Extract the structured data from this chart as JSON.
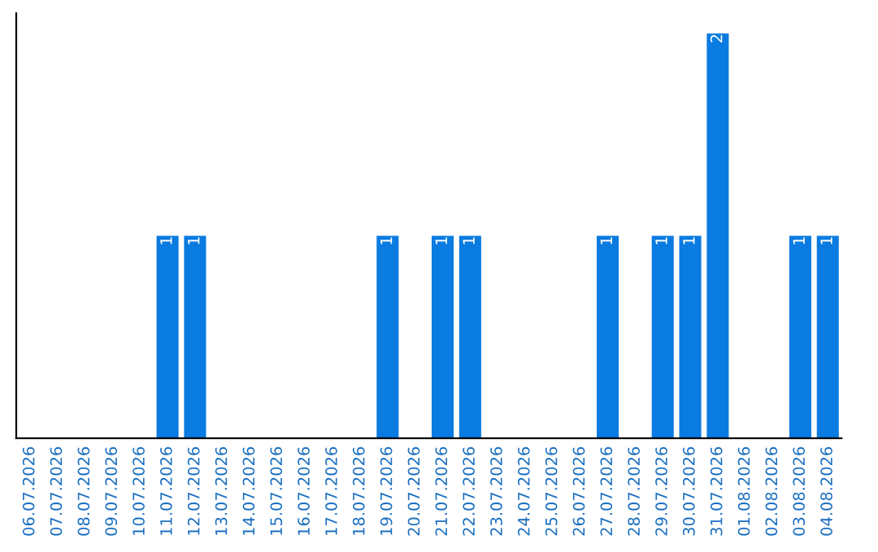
{
  "chart_data": {
    "type": "bar",
    "categories": [
      "06.07.2026",
      "07.07.2026",
      "08.07.2026",
      "09.07.2026",
      "10.07.2026",
      "11.07.2026",
      "12.07.2026",
      "13.07.2026",
      "14.07.2026",
      "15.07.2026",
      "16.07.2026",
      "17.07.2026",
      "18.07.2026",
      "19.07.2026",
      "20.07.2026",
      "21.07.2026",
      "22.07.2026",
      "23.07.2026",
      "24.07.2026",
      "25.07.2026",
      "26.07.2026",
      "27.07.2026",
      "28.07.2026",
      "29.07.2026",
      "30.07.2026",
      "31.07.2026",
      "01.08.2026",
      "02.08.2026",
      "03.08.2026",
      "04.08.2026"
    ],
    "values": [
      0,
      0,
      0,
      0,
      0,
      1,
      1,
      0,
      0,
      0,
      0,
      0,
      0,
      1,
      0,
      1,
      1,
      0,
      0,
      0,
      0,
      1,
      0,
      1,
      1,
      2,
      0,
      0,
      1,
      1
    ],
    "value_labels": [
      null,
      null,
      null,
      null,
      null,
      "1",
      "1",
      null,
      null,
      null,
      null,
      null,
      null,
      "1",
      null,
      "1",
      "1",
      null,
      null,
      null,
      null,
      "1",
      null,
      "1",
      "1",
      "2",
      null,
      null,
      "1",
      "1"
    ],
    "color": "#0a7be0",
    "tick_labels": "x",
    "grid": false
  }
}
